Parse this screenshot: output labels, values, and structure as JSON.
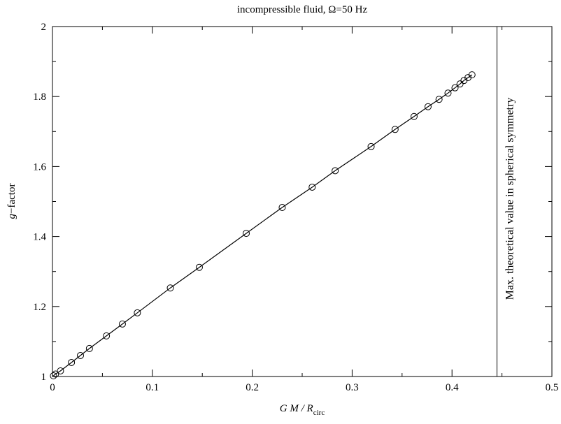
{
  "chart_data": {
    "type": "scatter",
    "title": "incompressible fluid, Ω=50 Hz",
    "xlabel": {
      "prefix": "G M / R",
      "subscript": "circ"
    },
    "ylabel": {
      "italic": "g",
      "rest": "−factor"
    },
    "xlim": [
      0,
      0.5
    ],
    "ylim": [
      1,
      2
    ],
    "xticks": [
      "0",
      "0.1",
      "0.2",
      "0.3",
      "0.4",
      "0.5"
    ],
    "yticks": [
      "1",
      "1.2",
      "1.4",
      "1.6",
      "1.8",
      "2"
    ],
    "grid": false,
    "legend": "none",
    "series": [
      {
        "style": "line-with-circle-markers",
        "x": [
          0.001,
          0.003,
          0.008,
          0.019,
          0.028,
          0.037,
          0.054,
          0.07,
          0.085,
          0.118,
          0.147,
          0.194,
          0.23,
          0.26,
          0.283,
          0.319,
          0.343,
          0.362,
          0.376,
          0.387,
          0.396,
          0.403,
          0.408,
          0.412,
          0.416,
          0.42
        ],
        "y": [
          1.002,
          1.007,
          1.016,
          1.04,
          1.06,
          1.08,
          1.116,
          1.15,
          1.182,
          1.253,
          1.312,
          1.409,
          1.483,
          1.541,
          1.588,
          1.657,
          1.706,
          1.743,
          1.771,
          1.792,
          1.81,
          1.825,
          1.836,
          1.846,
          1.854,
          1.862
        ]
      }
    ],
    "annotation": {
      "type": "vertical-line",
      "x": 0.445,
      "label": "Max. theoretical value in spherical symmetry"
    }
  }
}
